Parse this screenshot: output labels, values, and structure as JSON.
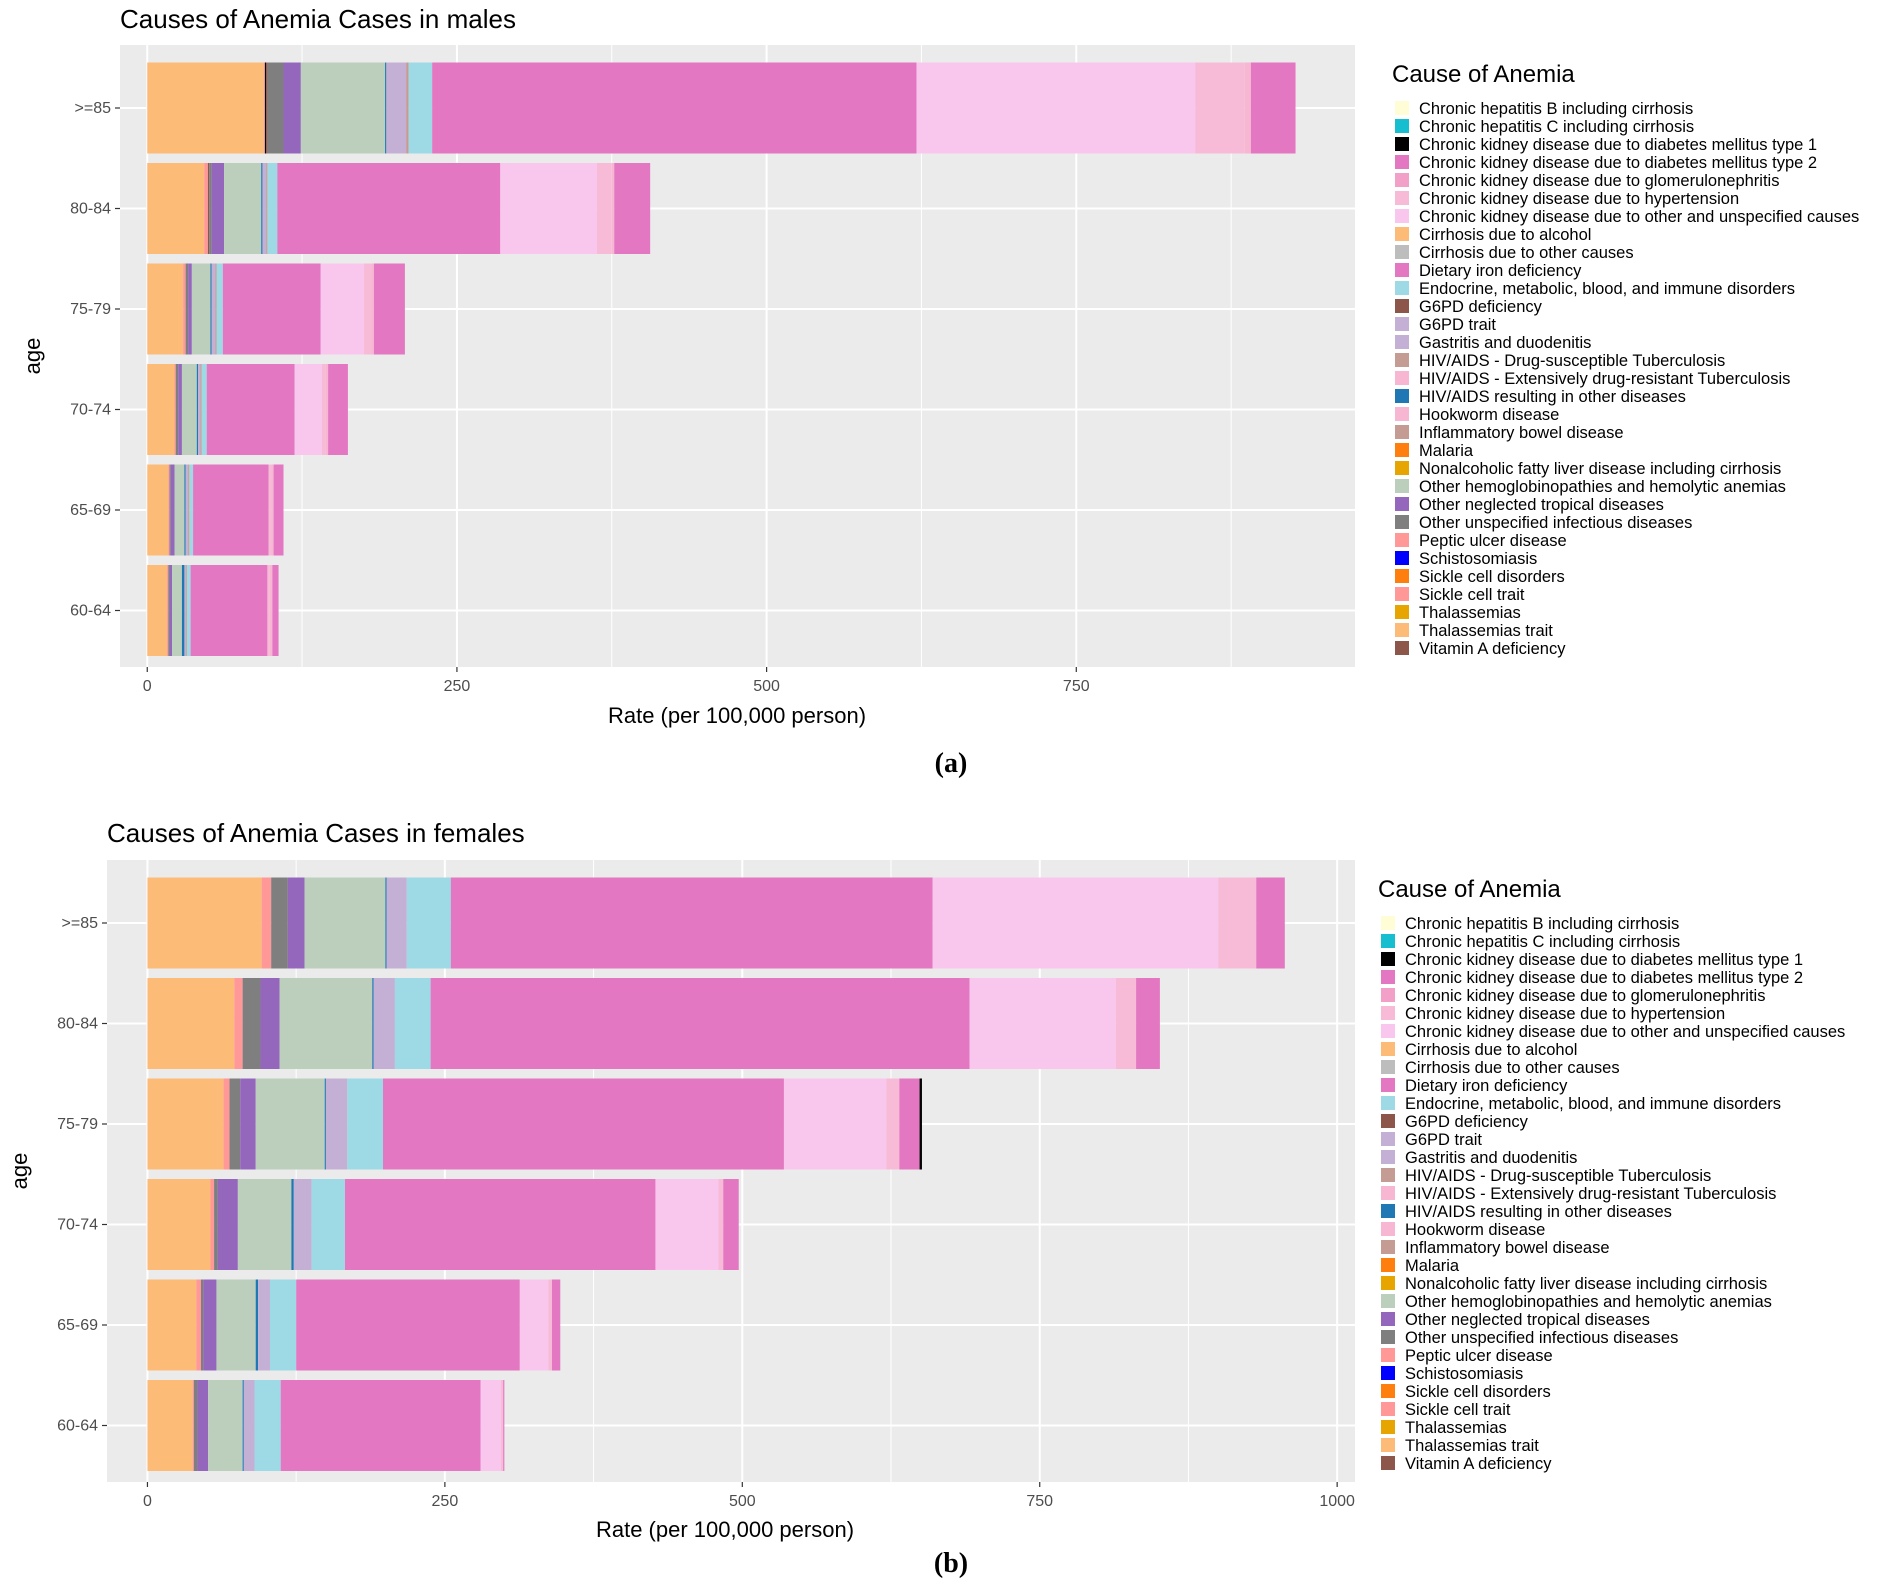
{
  "legend_title": "Cause of Anemia",
  "ylabel": "age",
  "xlabel": "Rate (per 100,000 person)",
  "causes": [
    "Chronic hepatitis B including cirrhosis",
    "Chronic hepatitis C including cirrhosis",
    "Chronic kidney disease due to diabetes mellitus type 1",
    "Chronic kidney disease due to diabetes mellitus type 2",
    "Chronic kidney disease due to glomerulonephritis",
    "Chronic kidney disease due to hypertension",
    "Chronic kidney disease due to other and unspecified causes",
    "Cirrhosis due to alcohol",
    "Cirrhosis due to other causes",
    "Dietary iron deficiency",
    "Endocrine, metabolic, blood, and immune disorders",
    "G6PD deficiency",
    "G6PD trait",
    "Gastritis and duodenitis",
    "HIV/AIDS - Drug-susceptible Tuberculosis",
    "HIV/AIDS - Extensively drug-resistant Tuberculosis",
    "HIV/AIDS resulting in other diseases",
    "Hookworm disease",
    "Inflammatory bowel disease",
    "Malaria",
    "Nonalcoholic fatty liver disease including cirrhosis",
    "Other hemoglobinopathies and hemolytic anemias",
    "Other neglected tropical diseases",
    "Other unspecified infectious diseases",
    "Peptic ulcer disease",
    "Schistosomiasis",
    "Sickle cell disorders",
    "Sickle cell trait",
    "Thalassemias",
    "Thalassemias trait",
    "Vitamin A deficiency"
  ],
  "colors": [
    "#FFFDD6",
    "#17BECF",
    "#000000",
    "#E377C2",
    "#F2A0C8",
    "#F8BBD7",
    "#F9C7EE",
    "#FDBB78",
    "#BDBDBD",
    "#E377C2",
    "#9EDAE5",
    "#8C564B",
    "#C5B0D5",
    "#C5B0D5",
    "#C49C94",
    "#F7B6D2",
    "#1F77B4",
    "#F7B6D2",
    "#C49C94",
    "#FF7F0E",
    "#E6A500",
    "#BCCFBD",
    "#9467BD",
    "#7F7F7F",
    "#FF9896",
    "#0000FF",
    "#FF7F0E",
    "#FF9896",
    "#E6A500",
    "#FDBB78",
    "#8C564B"
  ],
  "panel_labels": [
    "(a)",
    "(b)"
  ],
  "chart_data": [
    {
      "type": "bar",
      "orientation": "horizontal",
      "stacked": true,
      "title": "Causes of Anemia Cases in males",
      "xlabel": "Rate (per 100,000 person)",
      "ylabel": "age",
      "categories": [
        ">=85",
        "80-84",
        "75-79",
        "70-74",
        "65-69",
        "60-64"
      ],
      "xlim": [
        -22,
        975
      ],
      "xticks": [
        0,
        250,
        500,
        750
      ],
      "grid": true,
      "legend_position": "right",
      "stack_order": [
        7,
        24,
        2,
        11,
        23,
        22,
        21,
        16,
        12,
        18,
        10,
        9,
        6,
        5,
        17,
        3
      ],
      "series": [
        {
          "name": "Cirrhosis due to alcohol",
          "values": [
            94,
            46,
            29,
            22,
            17,
            16
          ]
        },
        {
          "name": "Peptic ulcer disease",
          "values": [
            1,
            3,
            2,
            1,
            1,
            1
          ]
        },
        {
          "name": "Chronic kidney disease due to diabetes mellitus type 1",
          "values": [
            1,
            0,
            0,
            0,
            0,
            0
          ]
        },
        {
          "name": "G6PD deficiency",
          "values": [
            1,
            1,
            0,
            0,
            0,
            0
          ]
        },
        {
          "name": "Other unspecified infectious diseases",
          "values": [
            13,
            2,
            2,
            2,
            1,
            1
          ]
        },
        {
          "name": "Other neglected tropical diseases",
          "values": [
            14,
            10,
            3,
            3,
            3,
            2
          ]
        },
        {
          "name": "Other hemoglobinopathies and hemolytic anemias",
          "values": [
            68,
            30,
            15,
            12,
            8,
            8
          ]
        },
        {
          "name": "HIV/AIDS resulting in other diseases",
          "values": [
            1,
            1,
            1,
            1,
            1,
            2
          ]
        },
        {
          "name": "G6PD trait",
          "values": [
            16,
            3,
            3,
            2,
            2,
            1
          ]
        },
        {
          "name": "Inflammatory bowel disease",
          "values": [
            2,
            1,
            1,
            1,
            1,
            1
          ]
        },
        {
          "name": "Endocrine, metabolic, blood, and immune disorders",
          "values": [
            19,
            8,
            5,
            4,
            3,
            3
          ]
        },
        {
          "name": "Dietary iron deficiency",
          "values": [
            391,
            180,
            79,
            71,
            61,
            62
          ]
        },
        {
          "name": "Chronic kidney disease due to other and unspecified causes",
          "values": [
            225,
            78,
            35,
            22,
            0,
            0
          ]
        },
        {
          "name": "Chronic kidney disease due to hypertension",
          "values": [
            40,
            12,
            6,
            3,
            2,
            2
          ]
        },
        {
          "name": "Hookworm disease",
          "values": [
            5,
            2,
            2,
            2,
            2,
            2
          ]
        },
        {
          "name": "Chronic kidney disease due to diabetes mellitus type 2",
          "values": [
            36,
            29,
            25,
            16,
            8,
            5
          ]
        }
      ]
    },
    {
      "type": "bar",
      "orientation": "horizontal",
      "stacked": true,
      "title": "Causes of Anemia Cases in females",
      "xlabel": "Rate (per 100,000 person)",
      "ylabel": "age",
      "categories": [
        ">=85",
        "80-84",
        "75-79",
        "70-74",
        "65-69",
        "60-64"
      ],
      "xlim": [
        -34,
        1015
      ],
      "xticks": [
        0,
        250,
        500,
        750,
        1000
      ],
      "grid": true,
      "legend_position": "right",
      "stack_order": [
        7,
        24,
        23,
        22,
        21,
        16,
        12,
        10,
        9,
        6,
        5,
        3,
        2
      ],
      "series": [
        {
          "name": "Cirrhosis due to alcohol",
          "values": [
            96,
            73,
            64,
            53,
            41,
            38
          ]
        },
        {
          "name": "Peptic ulcer disease",
          "values": [
            8,
            7,
            5,
            3,
            4,
            1
          ]
        },
        {
          "name": "Other unspecified infectious diseases",
          "values": [
            14,
            15,
            9,
            3,
            2,
            3
          ]
        },
        {
          "name": "Other neglected tropical diseases",
          "values": [
            14,
            16,
            13,
            17,
            11,
            9
          ]
        },
        {
          "name": "Other hemoglobinopathies and hemolytic anemias",
          "values": [
            68,
            78,
            58,
            45,
            33,
            29
          ]
        },
        {
          "name": "HIV/AIDS resulting in other diseases",
          "values": [
            1,
            1,
            1,
            2,
            2,
            1
          ]
        },
        {
          "name": "G6PD trait",
          "values": [
            17,
            18,
            18,
            15,
            10,
            9
          ]
        },
        {
          "name": "Endocrine, metabolic, blood, and immune disorders",
          "values": [
            37,
            30,
            30,
            28,
            22,
            22
          ]
        },
        {
          "name": "Dietary iron deficiency",
          "values": [
            405,
            453,
            337,
            261,
            188,
            168
          ]
        },
        {
          "name": "Chronic kidney disease due to other and unspecified causes",
          "values": [
            240,
            123,
            86,
            53,
            24,
            17
          ]
        },
        {
          "name": "Chronic kidney disease due to hypertension",
          "values": [
            32,
            17,
            11,
            4,
            3,
            2
          ]
        },
        {
          "name": "Chronic kidney disease due to diabetes mellitus type 2",
          "values": [
            24,
            20,
            17,
            13,
            7,
            1
          ]
        },
        {
          "name": "Chronic kidney disease due to diabetes mellitus type 1",
          "values": [
            0,
            0,
            2,
            0,
            0,
            0
          ]
        }
      ]
    }
  ]
}
